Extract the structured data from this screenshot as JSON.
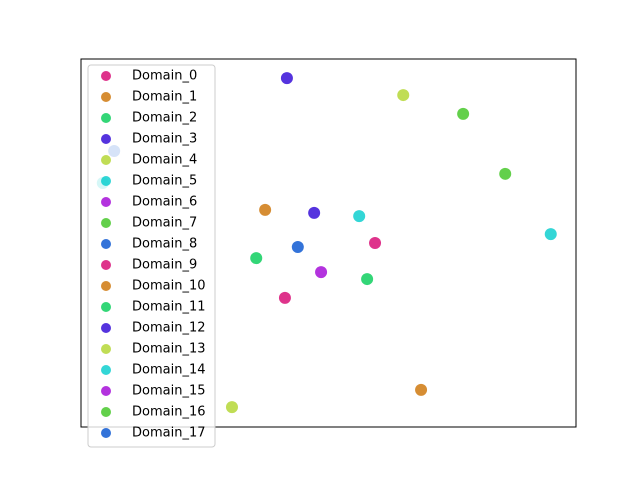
{
  "chart_data": {
    "type": "scatter",
    "xlim": [
      0,
      100
    ],
    "ylim": [
      0,
      100
    ],
    "alpha": 0.8,
    "legend": "upper left",
    "series": [
      {
        "name": "Domain_0",
        "color": "#d6006e",
        "x": [
          59.4
        ],
        "y": [
          50.0
        ]
      },
      {
        "name": "Domain_1",
        "color": "#cc7000",
        "x": [
          37.2
        ],
        "y": [
          59.0
        ]
      },
      {
        "name": "Domain_2",
        "color": "#00cc55",
        "x": [
          35.4
        ],
        "y": [
          45.9
        ]
      },
      {
        "name": "Domain_3",
        "color": "#2a00d6",
        "x": [
          47.1
        ],
        "y": [
          58.2
        ]
      },
      {
        "name": "Domain_4",
        "color": "#b0d42a",
        "x": [
          65.1
        ],
        "y": [
          90.2
        ]
      },
      {
        "name": "Domain_5",
        "color": "#00cccc",
        "x": [
          56.2
        ],
        "y": [
          57.3
        ]
      },
      {
        "name": "Domain_6",
        "color": "#a000d6",
        "x": [
          48.5
        ],
        "y": [
          42.1
        ]
      },
      {
        "name": "Domain_7",
        "color": "#3cc41e",
        "x": [
          77.2
        ],
        "y": [
          85.1
        ]
      },
      {
        "name": "Domain_8",
        "color": "#0050d0",
        "x": [
          43.8
        ],
        "y": [
          48.9
        ]
      },
      {
        "name": "Domain_9",
        "color": "#d6006e",
        "x": [
          41.2
        ],
        "y": [
          35.1
        ]
      },
      {
        "name": "Domain_10",
        "color": "#cc7000",
        "x": [
          68.7
        ],
        "y": [
          10.1
        ]
      },
      {
        "name": "Domain_11",
        "color": "#00cc55",
        "x": [
          57.8
        ],
        "y": [
          40.2
        ]
      },
      {
        "name": "Domain_12",
        "color": "#2a00d6",
        "x": [
          41.6
        ],
        "y": [
          94.8
        ]
      },
      {
        "name": "Domain_13",
        "color": "#b0d42a",
        "x": [
          30.5
        ],
        "y": [
          5.4
        ]
      },
      {
        "name": "Domain_14",
        "color": "#00cccc",
        "x": [
          94.9,
          4.4
        ],
        "y": [
          52.4,
          66.3
        ]
      },
      {
        "name": "Domain_15",
        "color": "#a000d6",
        "x": [],
        "y": []
      },
      {
        "name": "Domain_16",
        "color": "#3cc41e",
        "x": [
          85.7
        ],
        "y": [
          68.8
        ]
      },
      {
        "name": "Domain_17",
        "color": "#0050d0",
        "x": [
          6.7
        ],
        "y": [
          75.0
        ]
      }
    ]
  }
}
